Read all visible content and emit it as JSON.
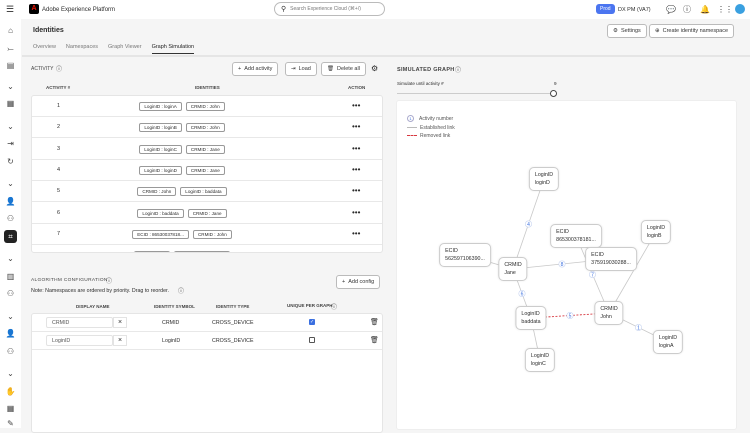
{
  "app": {
    "title": "Adobe Experience Platform",
    "search_placeholder": "Search Experience Cloud (⌘+/)",
    "env_badge": "Prod",
    "org": "DX PM (VA7)",
    "brand_color": "#eb1000",
    "env_color": "#4b75f0"
  },
  "page": {
    "title": "Identities",
    "settings": "Settings",
    "create": "Create identity namespace",
    "tabs": [
      "Overview",
      "Namespaces",
      "Graph Viewer",
      "Graph Simulation"
    ],
    "active_tab": "Graph Simulation"
  },
  "activity": {
    "title": "ACTIVITY",
    "add": "Add activity",
    "load": "Load",
    "delete_all": "Delete all",
    "headers": [
      "ACTIVITY #",
      "IDENTITIES",
      "ACTION"
    ],
    "rows": [
      {
        "n": "1",
        "ids": [
          "LoginID : loginA",
          "CRMID : John"
        ]
      },
      {
        "n": "2",
        "ids": [
          "LoginID : loginB",
          "CRMID : John"
        ]
      },
      {
        "n": "3",
        "ids": [
          "LoginID : loginC",
          "CRMID : Jane"
        ]
      },
      {
        "n": "4",
        "ids": [
          "LoginID : loginD",
          "CRMID : Jane"
        ]
      },
      {
        "n": "5",
        "ids": [
          "CRMID : John",
          "LoginID : baddata"
        ]
      },
      {
        "n": "6",
        "ids": [
          "LoginID : baddata",
          "CRMID : Jane"
        ]
      },
      {
        "n": "7",
        "ids": [
          "ECID : 86530037818...",
          "CRMID : John"
        ]
      }
    ]
  },
  "algo": {
    "title": "ALGORITHM CONFIGURATION",
    "note": "Note: Namespaces are ordered by priority. Drag to reorder.",
    "add": "Add config",
    "headers": [
      "DISPLAY NAME",
      "IDENTITY SYMBOL",
      "IDENTITY TYPE",
      "UNIQUE PER GRAPH"
    ],
    "rows": [
      {
        "name": "CRMID",
        "symbol": "CRMID",
        "type": "CROSS_DEVICE",
        "unique": true
      },
      {
        "name": "LoginID",
        "symbol": "LoginID",
        "type": "CROSS_DEVICE",
        "unique": false
      }
    ]
  },
  "graph": {
    "title": "SIMULATED GRAPH",
    "slider_label": "Simulate until activity #",
    "slider_value": "9",
    "legend": {
      "marker": "1",
      "activity": "Activity number",
      "established": "Established link",
      "removed": "Removed link"
    },
    "removed_color": "#d7373f",
    "nodes": [
      {
        "id": "loginD",
        "ns": "LoginID",
        "v": "loginD"
      },
      {
        "id": "ecid8",
        "ns": "ECID",
        "v": "865300378181..."
      },
      {
        "id": "loginB",
        "ns": "LoginID",
        "v": "loginB"
      },
      {
        "id": "ecid5",
        "ns": "ECID",
        "v": "562597106390..."
      },
      {
        "id": "jane",
        "ns": "CRMID",
        "v": "Jane"
      },
      {
        "id": "ecid3",
        "ns": "ECID",
        "v": "375919030288..."
      },
      {
        "id": "baddata",
        "ns": "LoginID",
        "v": "baddata"
      },
      {
        "id": "john",
        "ns": "CRMID",
        "v": "John"
      },
      {
        "id": "loginA",
        "ns": "LoginID",
        "v": "loginA"
      },
      {
        "id": "loginC",
        "ns": "LoginID",
        "v": "loginC"
      }
    ],
    "edges": [
      {
        "a": "loginD",
        "b": "jane",
        "label": "4"
      },
      {
        "a": "ecid5",
        "b": "jane",
        "label": ""
      },
      {
        "a": "jane",
        "b": "ecid3",
        "label": "8"
      },
      {
        "a": "ecid8",
        "b": "john",
        "label": "7"
      },
      {
        "a": "loginB",
        "b": "john",
        "label": ""
      },
      {
        "a": "jane",
        "b": "baddata",
        "label": "6"
      },
      {
        "a": "baddata",
        "b": "loginC",
        "label": ""
      },
      {
        "a": "baddata",
        "b": "john",
        "label": "5",
        "removed": true
      },
      {
        "a": "john",
        "b": "loginA",
        "label": "1"
      }
    ]
  }
}
